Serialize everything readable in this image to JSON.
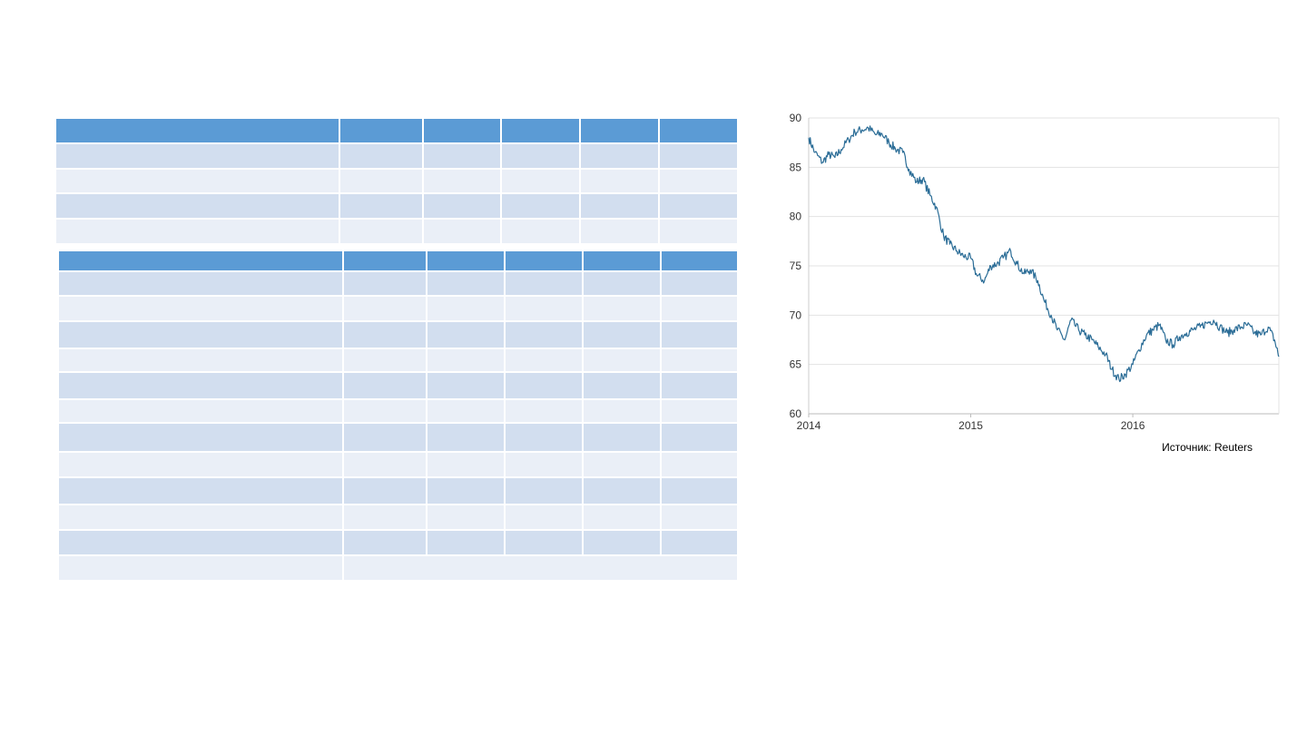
{
  "tables": {
    "table1": {
      "header_cells": 6,
      "body_rows": 4
    },
    "table2": {
      "header_cells": 6,
      "body_rows": 12,
      "last_row_merged": true
    }
  },
  "colors": {
    "header": "#5b9bd5",
    "band_a": "#d2deef",
    "band_b": "#eaeff7",
    "line": "#2a6c96",
    "grid": "#e3e3e3"
  },
  "source_note": "Источник: Reuters",
  "chart_data": {
    "type": "line",
    "title": "",
    "xlabel": "",
    "ylabel": "",
    "ylim": [
      60,
      90
    ],
    "yticks": [
      60,
      65,
      70,
      75,
      80,
      85,
      90
    ],
    "xlim": [
      "2014-01-01",
      "2016-11-25"
    ],
    "xticks": [
      "2014",
      "2015",
      "2016"
    ],
    "grid": "horizontal",
    "legend": "none",
    "series": [
      {
        "x": [
          "2014-01-01",
          "2014-01-15",
          "2014-02-01",
          "2014-02-15",
          "2014-03-01",
          "2014-03-15",
          "2014-04-01",
          "2014-04-15",
          "2014-05-01",
          "2014-05-15",
          "2014-06-01",
          "2014-06-15",
          "2014-07-01",
          "2014-07-15",
          "2014-08-01",
          "2014-08-15",
          "2014-09-01",
          "2014-09-15",
          "2014-10-01",
          "2014-10-15",
          "2014-11-01",
          "2014-11-15",
          "2014-12-01",
          "2014-12-15",
          "2015-01-01",
          "2015-01-15",
          "2015-02-01",
          "2015-02-15",
          "2015-03-01",
          "2015-03-15",
          "2015-04-01",
          "2015-04-15",
          "2015-05-01",
          "2015-05-15",
          "2015-06-01",
          "2015-06-15",
          "2015-07-01",
          "2015-07-15",
          "2015-08-01",
          "2015-08-15",
          "2015-09-01",
          "2015-09-15",
          "2015-10-01",
          "2015-10-15",
          "2015-11-01",
          "2015-11-15",
          "2015-12-01",
          "2015-12-15",
          "2016-01-01",
          "2016-01-15",
          "2016-02-01",
          "2016-02-15",
          "2016-03-01",
          "2016-03-15",
          "2016-04-01",
          "2016-04-15",
          "2016-05-01",
          "2016-05-15",
          "2016-06-01",
          "2016-06-15",
          "2016-07-01",
          "2016-07-15",
          "2016-08-01",
          "2016-08-15",
          "2016-09-01",
          "2016-09-15",
          "2016-10-01",
          "2016-10-15",
          "2016-11-01",
          "2016-11-15",
          "2016-11-25"
        ],
        "y": [
          88.0,
          86.5,
          85.5,
          86.3,
          86.0,
          86.8,
          87.8,
          88.6,
          88.8,
          89.0,
          88.3,
          88.4,
          87.5,
          86.9,
          86.5,
          84.8,
          83.5,
          83.8,
          82.2,
          81.0,
          78.0,
          77.2,
          76.5,
          76.0,
          75.8,
          74.0,
          73.5,
          75.0,
          75.2,
          75.8,
          76.5,
          75.2,
          74.2,
          74.6,
          73.5,
          71.5,
          70.0,
          68.5,
          67.5,
          69.5,
          68.5,
          68.0,
          67.5,
          66.8,
          66.0,
          64.5,
          63.5,
          64.0,
          65.0,
          66.5,
          68.0,
          68.5,
          69.0,
          67.5,
          67.0,
          67.8,
          68.2,
          68.5,
          68.8,
          69.2,
          69.5,
          68.8,
          68.2,
          68.5,
          68.8,
          69.0,
          68.2,
          68.0,
          68.8,
          67.5,
          65.8
        ]
      }
    ]
  }
}
